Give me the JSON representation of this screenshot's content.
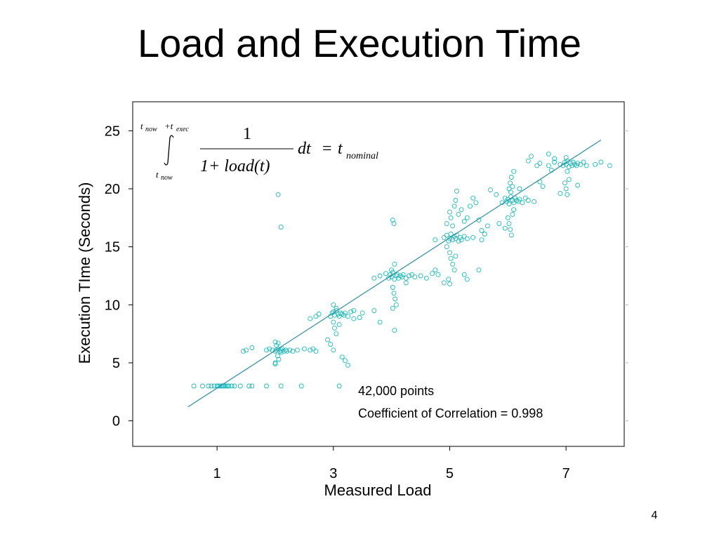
{
  "slide": {
    "title": "Load and Execution Time",
    "page_number": "4"
  },
  "formula": {
    "upper_limit_t": "t",
    "upper_limit_now": "now",
    "upper_limit_plus_t": "+t",
    "upper_limit_exec": "exec",
    "lower_limit_t": "t",
    "lower_limit_now": "now",
    "numerator": "1",
    "denominator": "1+ load(t)",
    "differential": "dt",
    "equals": "=",
    "rhs_t": "t",
    "rhs_sub": "nominal"
  },
  "annotations": {
    "points": "42,000 points",
    "correlation": "Coefficient of Correlation = 0.998"
  },
  "colors": {
    "points": "#22b8b8",
    "fit_line": "#2a8aa6"
  },
  "chart_data": {
    "type": "scatter",
    "xlabel": "Measured Load",
    "ylabel": "Execution TIme (Seconds)",
    "xlim": [
      -0.45,
      8.0
    ],
    "ylim": [
      -2.2,
      27.5
    ],
    "xticks": [
      1,
      3,
      5,
      7
    ],
    "yticks": [
      0,
      5,
      10,
      15,
      20,
      25
    ],
    "grid": false,
    "fit_line": {
      "x": [
        0.5,
        7.6
      ],
      "y": [
        1.2,
        24.2
      ]
    },
    "series": [
      {
        "marker": "open-circle",
        "points": [
          [
            0.6,
            3.0
          ],
          [
            0.75,
            3.0
          ],
          [
            0.85,
            3.0
          ],
          [
            0.9,
            3.0
          ],
          [
            0.95,
            3.0
          ],
          [
            1.0,
            3.0
          ],
          [
            1.02,
            3.0
          ],
          [
            1.05,
            3.0
          ],
          [
            1.08,
            3.0
          ],
          [
            1.1,
            3.0
          ],
          [
            1.12,
            3.0
          ],
          [
            1.15,
            3.0
          ],
          [
            1.18,
            3.0
          ],
          [
            1.2,
            3.0
          ],
          [
            1.25,
            3.0
          ],
          [
            1.3,
            3.0
          ],
          [
            1.4,
            3.0
          ],
          [
            1.55,
            3.0
          ],
          [
            1.6,
            3.0
          ],
          [
            1.85,
            3.0
          ],
          [
            2.1,
            3.0
          ],
          [
            2.45,
            3.0
          ],
          [
            3.1,
            3.0
          ],
          [
            1.45,
            6.0
          ],
          [
            1.5,
            6.1
          ],
          [
            1.6,
            6.3
          ],
          [
            1.85,
            6.1
          ],
          [
            1.9,
            6.2
          ],
          [
            1.95,
            6.1
          ],
          [
            2.0,
            6.0
          ],
          [
            2.02,
            6.1
          ],
          [
            2.05,
            6.2
          ],
          [
            2.08,
            6.0
          ],
          [
            2.1,
            6.1
          ],
          [
            2.12,
            6.2
          ],
          [
            2.15,
            6.0
          ],
          [
            2.18,
            6.1
          ],
          [
            2.2,
            6.0
          ],
          [
            2.25,
            6.1
          ],
          [
            2.3,
            6.0
          ],
          [
            2.38,
            6.1
          ],
          [
            2.5,
            6.2
          ],
          [
            2.6,
            6.1
          ],
          [
            2.65,
            6.2
          ],
          [
            2.7,
            6.0
          ],
          [
            3.0,
            6.1
          ],
          [
            2.0,
            6.8
          ],
          [
            2.02,
            6.5
          ],
          [
            2.04,
            5.6
          ],
          [
            2.06,
            5.3
          ],
          [
            2.0,
            4.9
          ],
          [
            2.05,
            6.7
          ],
          [
            2.1,
            5.9
          ],
          [
            2.9,
            7.0
          ],
          [
            2.95,
            6.6
          ],
          [
            3.15,
            5.5
          ],
          [
            3.2,
            5.2
          ],
          [
            3.25,
            4.8
          ],
          [
            2.6,
            8.8
          ],
          [
            2.7,
            9.0
          ],
          [
            2.75,
            9.2
          ],
          [
            2.95,
            9.0
          ],
          [
            2.98,
            9.3
          ],
          [
            3.0,
            9.4
          ],
          [
            3.02,
            9.1
          ],
          [
            3.05,
            9.5
          ],
          [
            3.08,
            9.2
          ],
          [
            3.1,
            9.0
          ],
          [
            3.12,
            9.3
          ],
          [
            3.15,
            9.2
          ],
          [
            3.18,
            9.1
          ],
          [
            3.2,
            9.3
          ],
          [
            3.25,
            9.0
          ],
          [
            3.3,
            9.4
          ],
          [
            3.35,
            9.5
          ],
          [
            3.5,
            9.3
          ],
          [
            3.7,
            9.5
          ],
          [
            3.0,
            10.0
          ],
          [
            3.05,
            9.7
          ],
          [
            3.0,
            8.5
          ],
          [
            3.02,
            8.0
          ],
          [
            3.05,
            7.5
          ],
          [
            3.1,
            8.3
          ],
          [
            3.35,
            8.8
          ],
          [
            3.45,
            8.9
          ],
          [
            3.8,
            8.5
          ],
          [
            3.7,
            12.3
          ],
          [
            3.8,
            12.5
          ],
          [
            3.9,
            12.7
          ],
          [
            3.95,
            12.3
          ],
          [
            3.98,
            12.6
          ],
          [
            4.0,
            12.4
          ],
          [
            4.02,
            12.8
          ],
          [
            4.05,
            12.2
          ],
          [
            4.08,
            12.5
          ],
          [
            4.1,
            12.6
          ],
          [
            4.12,
            12.3
          ],
          [
            4.15,
            12.5
          ],
          [
            4.18,
            12.4
          ],
          [
            4.2,
            12.6
          ],
          [
            4.25,
            12.3
          ],
          [
            4.3,
            12.5
          ],
          [
            4.35,
            12.6
          ],
          [
            4.4,
            12.4
          ],
          [
            4.6,
            12.3
          ],
          [
            4.7,
            12.7
          ],
          [
            4.8,
            12.6
          ],
          [
            4.05,
            13.5
          ],
          [
            4.0,
            13.0
          ],
          [
            4.02,
            11.5
          ],
          [
            4.04,
            11.0
          ],
          [
            4.06,
            10.5
          ],
          [
            4.08,
            10.0
          ],
          [
            4.02,
            9.7
          ],
          [
            4.05,
            7.8
          ],
          [
            4.02,
            17.3
          ],
          [
            4.04,
            17.0
          ],
          [
            4.25,
            11.9
          ],
          [
            4.9,
            11.9
          ],
          [
            4.75,
            15.6
          ],
          [
            4.9,
            15.8
          ],
          [
            4.95,
            16.0
          ],
          [
            4.98,
            15.5
          ],
          [
            5.0,
            15.7
          ],
          [
            5.02,
            16.1
          ],
          [
            5.05,
            15.6
          ],
          [
            5.08,
            15.9
          ],
          [
            5.1,
            15.7
          ],
          [
            5.12,
            16.0
          ],
          [
            5.15,
            15.5
          ],
          [
            5.18,
            15.8
          ],
          [
            5.2,
            15.6
          ],
          [
            5.25,
            15.9
          ],
          [
            5.3,
            15.7
          ],
          [
            5.4,
            15.8
          ],
          [
            5.55,
            15.6
          ],
          [
            5.6,
            16.1
          ],
          [
            4.95,
            17.0
          ],
          [
            5.0,
            18.0
          ],
          [
            5.02,
            17.5
          ],
          [
            5.05,
            16.8
          ],
          [
            5.08,
            18.5
          ],
          [
            5.1,
            19.0
          ],
          [
            5.12,
            19.8
          ],
          [
            5.15,
            17.8
          ],
          [
            5.2,
            18.2
          ],
          [
            5.25,
            17.2
          ],
          [
            5.3,
            17.5
          ],
          [
            5.35,
            18.5
          ],
          [
            5.4,
            19.2
          ],
          [
            5.45,
            18.8
          ],
          [
            5.5,
            17.3
          ],
          [
            5.55,
            16.4
          ],
          [
            5.65,
            16.8
          ],
          [
            5.8,
            19.5
          ],
          [
            5.85,
            17.0
          ],
          [
            5.95,
            16.6
          ],
          [
            4.95,
            15.0
          ],
          [
            5.0,
            14.5
          ],
          [
            5.02,
            14.0
          ],
          [
            5.05,
            13.5
          ],
          [
            5.08,
            13.0
          ],
          [
            5.1,
            14.2
          ],
          [
            4.98,
            12.2
          ],
          [
            4.75,
            13.0
          ],
          [
            5.25,
            12.6
          ],
          [
            5.3,
            12.2
          ],
          [
            5.5,
            13.0
          ],
          [
            4.5,
            12.5
          ],
          [
            5.0,
            11.8
          ],
          [
            5.7,
            19.9
          ],
          [
            5.9,
            18.8
          ],
          [
            5.95,
            19.2
          ],
          [
            5.98,
            18.9
          ],
          [
            6.0,
            19.1
          ],
          [
            6.02,
            18.7
          ],
          [
            6.05,
            19.3
          ],
          [
            6.08,
            19.0
          ],
          [
            6.1,
            18.8
          ],
          [
            6.12,
            19.2
          ],
          [
            6.15,
            19.0
          ],
          [
            6.18,
            18.9
          ],
          [
            6.2,
            19.1
          ],
          [
            6.25,
            18.8
          ],
          [
            6.3,
            19.2
          ],
          [
            6.35,
            19.0
          ],
          [
            6.45,
            18.9
          ],
          [
            6.02,
            20.0
          ],
          [
            6.04,
            20.5
          ],
          [
            6.06,
            21.0
          ],
          [
            6.08,
            20.2
          ],
          [
            6.05,
            19.7
          ],
          [
            6.0,
            17.5
          ],
          [
            6.02,
            17.0
          ],
          [
            6.04,
            16.5
          ],
          [
            6.06,
            16.0
          ],
          [
            6.08,
            17.8
          ],
          [
            6.1,
            18.2
          ],
          [
            6.1,
            21.5
          ],
          [
            6.2,
            20.0
          ],
          [
            6.35,
            22.4
          ],
          [
            6.4,
            22.8
          ],
          [
            6.55,
            22.2
          ],
          [
            6.7,
            22.0
          ],
          [
            6.75,
            21.6
          ],
          [
            6.8,
            22.3
          ],
          [
            6.9,
            22.1
          ],
          [
            6.55,
            20.6
          ],
          [
            6.6,
            20.2
          ],
          [
            6.9,
            19.6
          ],
          [
            6.95,
            22.0
          ],
          [
            6.98,
            22.3
          ],
          [
            7.0,
            22.1
          ],
          [
            7.02,
            22.4
          ],
          [
            7.05,
            21.9
          ],
          [
            7.08,
            22.2
          ],
          [
            7.1,
            22.0
          ],
          [
            7.12,
            22.3
          ],
          [
            7.15,
            22.1
          ],
          [
            7.18,
            22.0
          ],
          [
            7.2,
            22.2
          ],
          [
            7.25,
            22.1
          ],
          [
            7.3,
            22.3
          ],
          [
            7.35,
            22.0
          ],
          [
            7.5,
            22.1
          ],
          [
            7.6,
            22.3
          ],
          [
            7.75,
            22.0
          ],
          [
            7.0,
            22.7
          ],
          [
            7.02,
            21.5
          ],
          [
            6.98,
            20.5
          ],
          [
            7.0,
            20.0
          ],
          [
            7.02,
            19.5
          ],
          [
            7.05,
            20.8
          ],
          [
            7.2,
            20.3
          ],
          [
            6.7,
            23.0
          ],
          [
            6.8,
            22.6
          ],
          [
            6.5,
            22.0
          ],
          [
            1.1,
            3.0
          ],
          [
            2.05,
            19.5
          ],
          [
            2.1,
            16.7
          ],
          [
            2.0,
            5.0
          ]
        ]
      }
    ]
  }
}
